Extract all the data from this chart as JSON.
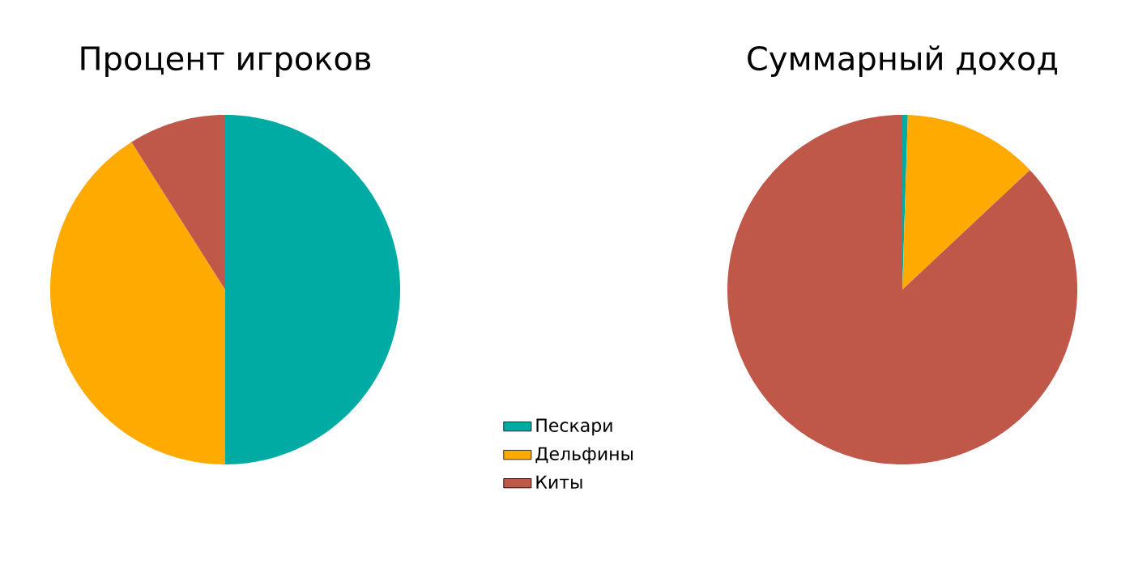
{
  "chart_data": [
    {
      "type": "pie",
      "title": "Процент игроков",
      "categories": [
        "Пескари",
        "Дельфины",
        "Киты"
      ],
      "values": [
        50,
        41,
        9
      ],
      "colors": [
        "#00aba4",
        "#ffaa00",
        "#c0584a"
      ],
      "legend": "bottom right"
    },
    {
      "type": "pie",
      "title": "Суммарный доход",
      "categories": [
        null,
        null,
        null
      ],
      "values": [
        0.5,
        12.5,
        87
      ],
      "colors": [
        "#00aba4",
        "#ffaa00",
        "#c0584a"
      ]
    }
  ]
}
